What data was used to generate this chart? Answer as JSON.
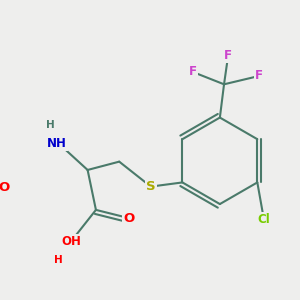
{
  "bg_color": "#eeeeed",
  "bond_color": "#4a7a6a",
  "bond_width": 1.5,
  "atom_colors": {
    "O": "#ff0000",
    "N": "#0000cc",
    "S": "#aaaa00",
    "Cl": "#77cc00",
    "F": "#cc44cc",
    "H": "#4a7a6a",
    "C": "#4a7a6a"
  },
  "font_size": 9.5,
  "font_size_sub": 8.5
}
